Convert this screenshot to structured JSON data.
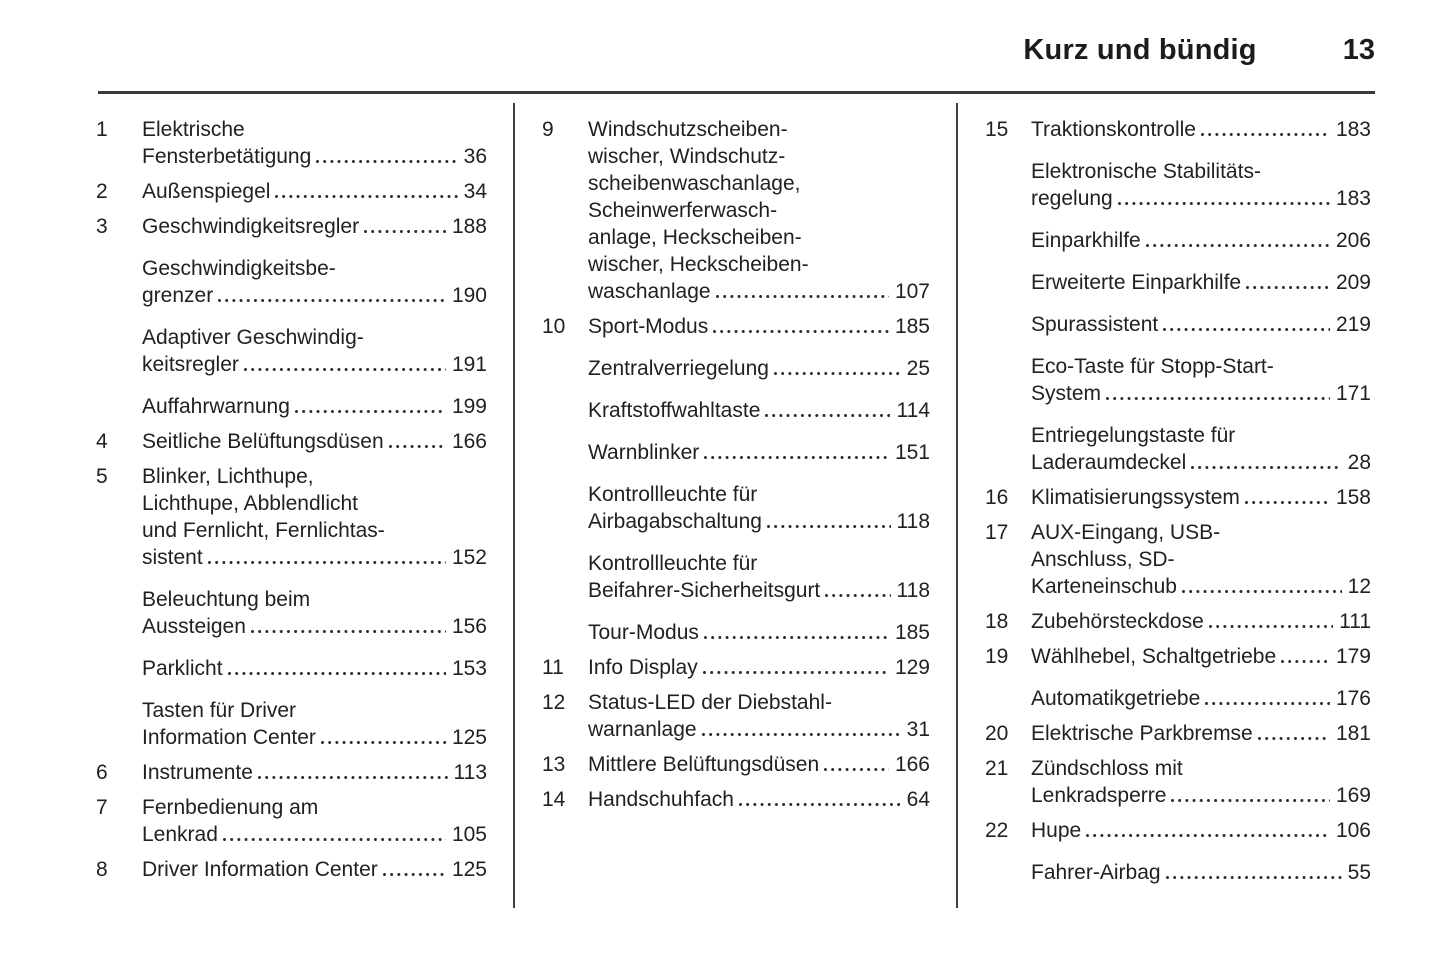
{
  "header": {
    "section_title": "Kurz und bündig",
    "page_number": "13"
  },
  "toc": {
    "columns": [
      [
        {
          "num": "1",
          "lines": [
            "Elektrische"
          ],
          "last": "Fensterbetätigung",
          "page": "36"
        },
        {
          "num": "2",
          "lines": [],
          "last": "Außenspiegel",
          "page": "34"
        },
        {
          "num": "3",
          "lines": [],
          "last": "Geschwindigkeitsregler",
          "page": "188"
        },
        {
          "num": "",
          "lines": [
            "Geschwindigkeitsbe-"
          ],
          "last": "grenzer",
          "page": "190"
        },
        {
          "num": "",
          "lines": [
            "Adaptiver Geschwindig-"
          ],
          "last": "keitsregler",
          "page": "191"
        },
        {
          "num": "",
          "lines": [],
          "last": "Auffahrwarnung",
          "page": "199"
        },
        {
          "num": "4",
          "lines": [],
          "last": "Seitliche Belüftungsdüsen",
          "page": "166"
        },
        {
          "num": "5",
          "lines": [
            "Blinker, Lichthupe,",
            "Lichthupe, Abblendlicht",
            "und Fernlicht, Fernlichtas-"
          ],
          "last": "sistent",
          "page": "152"
        },
        {
          "num": "",
          "lines": [
            "Beleuchtung beim"
          ],
          "last": "Aussteigen",
          "page": "156"
        },
        {
          "num": "",
          "lines": [],
          "last": "Parklicht",
          "page": "153"
        },
        {
          "num": "",
          "lines": [
            "Tasten für Driver"
          ],
          "last": "Information Center",
          "page": "125"
        },
        {
          "num": "6",
          "lines": [],
          "last": "Instrumente",
          "page": "113"
        },
        {
          "num": "7",
          "lines": [
            "Fernbedienung am"
          ],
          "last": "Lenkrad",
          "page": "105"
        },
        {
          "num": "8",
          "lines": [],
          "last": "Driver Information Center",
          "page": "125"
        }
      ],
      [
        {
          "num": "9",
          "lines": [
            "Windschutzscheiben-",
            "wischer, Windschutz-",
            "scheibenwaschanlage,",
            "Scheinwerferwasch-",
            "anlage, Heckscheiben-",
            "wischer, Heckscheiben-"
          ],
          "last": "waschanlage",
          "page": "107"
        },
        {
          "num": "10",
          "lines": [],
          "last": "Sport-Modus",
          "page": "185"
        },
        {
          "num": "",
          "lines": [],
          "last": "Zentralverriegelung",
          "page": "25"
        },
        {
          "num": "",
          "lines": [],
          "last": "Kraftstoffwahltaste",
          "page": "114"
        },
        {
          "num": "",
          "lines": [],
          "last": "Warnblinker",
          "page": "151"
        },
        {
          "num": "",
          "lines": [
            "Kontrollleuchte für"
          ],
          "last": "Airbagabschaltung",
          "page": "118"
        },
        {
          "num": "",
          "lines": [
            "Kontrollleuchte für"
          ],
          "last": "Beifahrer-Sicherheitsgurt",
          "page": "118"
        },
        {
          "num": "",
          "lines": [],
          "last": "Tour-Modus",
          "page": "185"
        },
        {
          "num": "11",
          "lines": [],
          "last": "Info Display",
          "page": "129"
        },
        {
          "num": "12",
          "lines": [
            "Status-LED der Diebstahl-"
          ],
          "last": "warnanlage",
          "page": "31"
        },
        {
          "num": "13",
          "lines": [],
          "last": "Mittlere Belüftungsdüsen",
          "page": "166"
        },
        {
          "num": "14",
          "lines": [],
          "last": "Handschuhfach",
          "page": "64"
        }
      ],
      [
        {
          "num": "15",
          "lines": [],
          "last": "Traktionskontrolle",
          "page": "183"
        },
        {
          "num": "",
          "lines": [
            "Elektronische Stabilitäts-"
          ],
          "last": "regelung",
          "page": "183"
        },
        {
          "num": "",
          "lines": [],
          "last": "Einparkhilfe",
          "page": "206"
        },
        {
          "num": "",
          "lines": [],
          "last": "Erweiterte Einparkhilfe",
          "page": "209"
        },
        {
          "num": "",
          "lines": [],
          "last": "Spurassistent",
          "page": "219"
        },
        {
          "num": "",
          "lines": [
            "Eco-Taste für Stopp-Start-"
          ],
          "last": "System",
          "page": "171"
        },
        {
          "num": "",
          "lines": [
            "Entriegelungstaste für"
          ],
          "last": "Laderaumdeckel",
          "page": "28"
        },
        {
          "num": "16",
          "lines": [],
          "last": "Klimatisierungssystem",
          "page": "158"
        },
        {
          "num": "17",
          "lines": [
            "AUX-Eingang, USB-",
            "Anschluss, SD-"
          ],
          "last": "Karteneinschub",
          "page": "12"
        },
        {
          "num": "18",
          "lines": [],
          "last": "Zubehörsteckdose",
          "page": "111"
        },
        {
          "num": "19",
          "lines": [],
          "last": "Wählhebel, Schaltgetriebe",
          "page": "179"
        },
        {
          "num": "",
          "lines": [],
          "last": "Automatikgetriebe",
          "page": "176"
        },
        {
          "num": "20",
          "lines": [],
          "last": "Elektrische Parkbremse",
          "page": "181"
        },
        {
          "num": "21",
          "lines": [
            "Zündschloss mit"
          ],
          "last": "Lenkradsperre",
          "page": "169"
        },
        {
          "num": "22",
          "lines": [],
          "last": "Hupe",
          "page": "106"
        },
        {
          "num": "",
          "lines": [],
          "last": "Fahrer-Airbag",
          "page": "55"
        }
      ]
    ]
  }
}
